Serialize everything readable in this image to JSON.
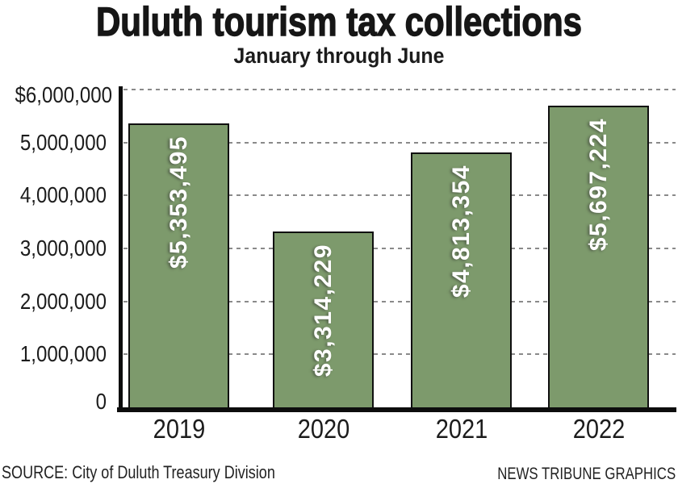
{
  "header": {
    "title": "Duluth tourism tax collections",
    "subtitle": "January through June"
  },
  "footer": {
    "source": "SOURCE: City of Duluth Treasury Division",
    "credit": "NEWS TRIBUNE GRAPHICS"
  },
  "chart_data": {
    "type": "bar",
    "title": "Duluth tourism tax collections",
    "subtitle": "January through June",
    "categories": [
      "2019",
      "2020",
      "2021",
      "2022"
    ],
    "values": [
      5353495,
      3314229,
      4813354,
      5697224
    ],
    "value_labels": [
      "$5,353,495",
      "$3,314,229",
      "$4,813,354",
      "$5,697,224"
    ],
    "xlabel": "",
    "ylabel": "",
    "ylim": [
      0,
      6000000
    ],
    "yticks": [
      0,
      1000000,
      2000000,
      3000000,
      4000000,
      5000000,
      6000000
    ],
    "ytick_labels": [
      "0",
      "1,000,000",
      "2,000,000",
      "3,000,000",
      "4,000,000",
      "5,000,000",
      "$6,000,000"
    ],
    "grid": "horizontal-dashed",
    "legend": "none",
    "bar_color": "#7d9a6c",
    "bar_border_color": "#101010",
    "value_label_color": "#ffffff",
    "gridline_color": "#8a8a8a",
    "axis_color": "#0d0d0d"
  }
}
